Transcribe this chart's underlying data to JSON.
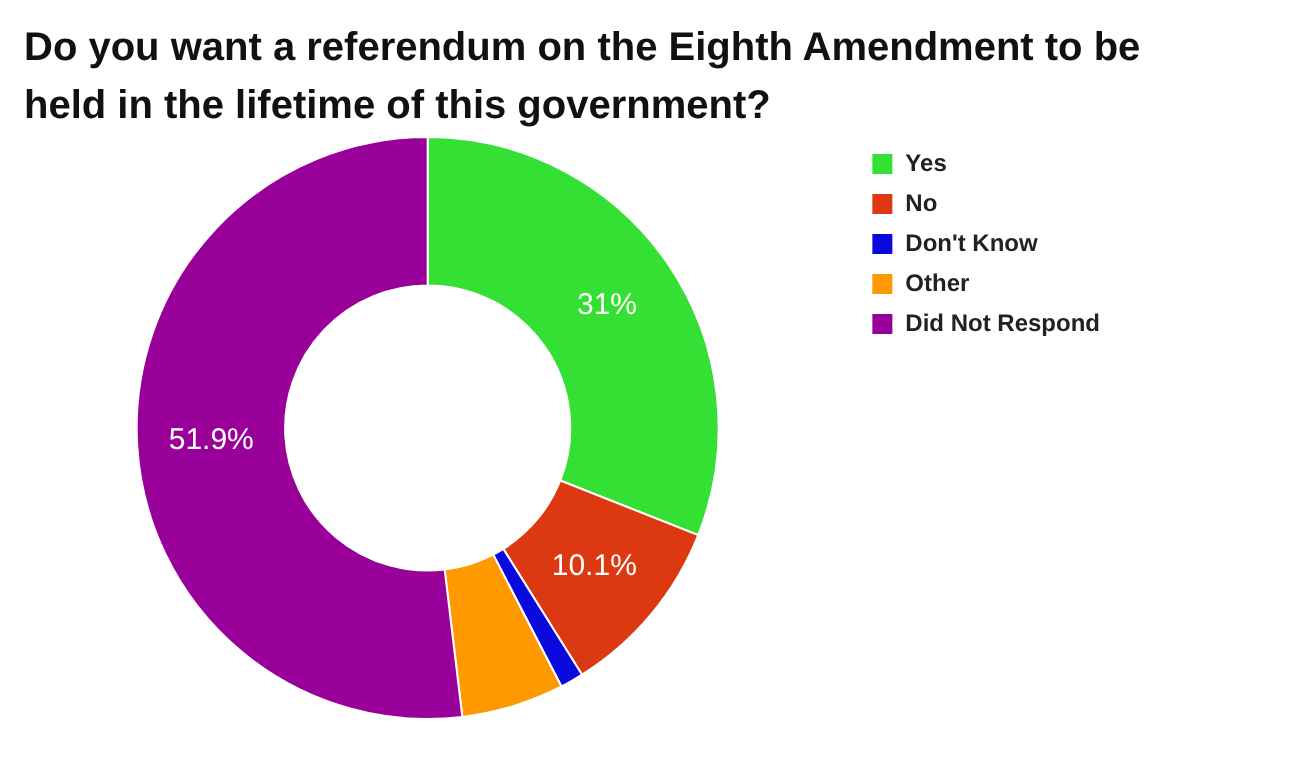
{
  "chart_data": {
    "type": "donut",
    "title": "Do you want a referendum on the Eighth Amendment to be held in the lifetime of this government?",
    "categories": [
      "Yes",
      "No",
      "Don't Know",
      "Other",
      "Did Not Respond"
    ],
    "values": [
      31,
      10.1,
      1.3,
      5.7,
      51.9
    ],
    "colors": [
      "#33e033",
      "#dc3912",
      "#0a0adc",
      "#ff9900",
      "#990099"
    ],
    "value_labels": [
      "31%",
      "10.1%",
      null,
      null,
      "51.9%"
    ],
    "legend": "right"
  }
}
